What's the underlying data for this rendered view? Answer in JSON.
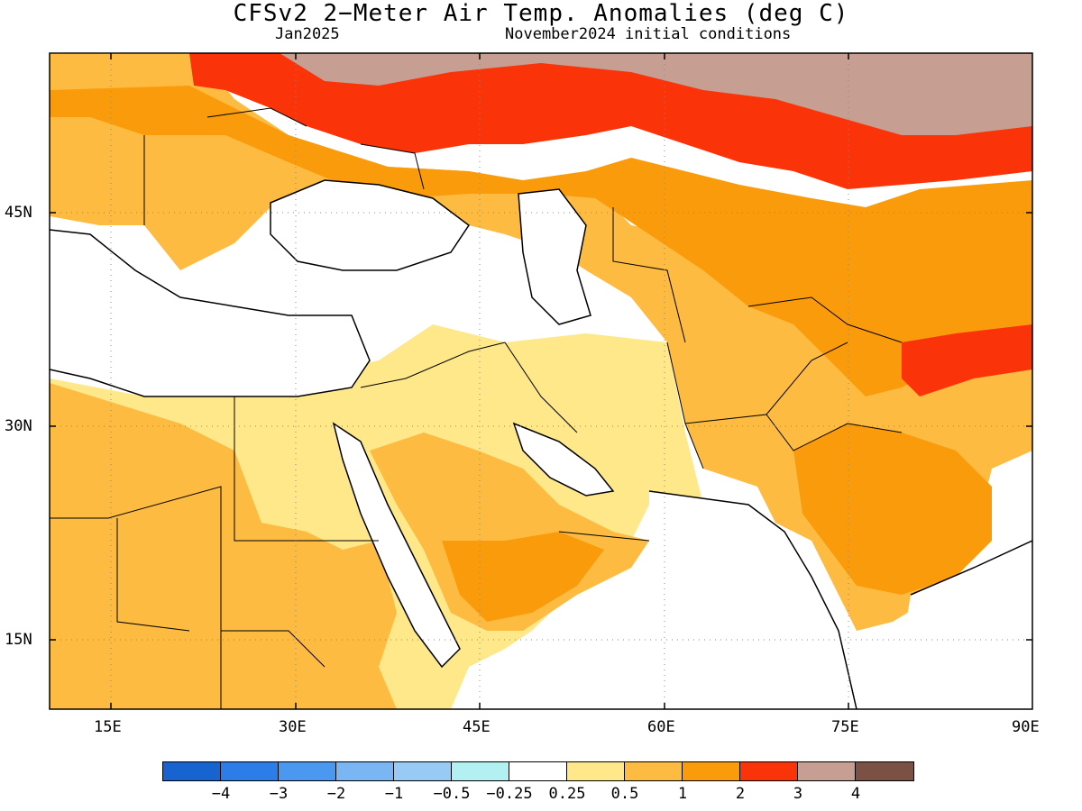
{
  "map": {
    "title": "CFSv2 2−Meter Air Temp. Anomalies (deg C)",
    "valid_month": "Jan2025",
    "initial_conditions": "November2024 initial conditions",
    "lat_labels": [
      "45N",
      "30N",
      "15N"
    ],
    "lon_labels": [
      "15E",
      "30E",
      "45E",
      "60E",
      "75E",
      "90E"
    ],
    "region": "Middle East / South-West Asia",
    "extent": {
      "lon": [
        10,
        90
      ],
      "lat": [
        10,
        56
      ]
    }
  },
  "legend": {
    "colors": [
      "#1764d1",
      "#2d7de8",
      "#4a98f0",
      "#7ab6f3",
      "#97cbf6",
      "#b3f0f2",
      "#ffffff",
      "#ffe88a",
      "#fdbb41",
      "#fa9b0c",
      "#fa3309",
      "#c69e92",
      "#7a5144"
    ],
    "labels": [
      "−4",
      "−3",
      "−2",
      "−1",
      "−0.5",
      "−0.25",
      "0.25",
      "0.5",
      "1",
      "2",
      "3",
      "4"
    ]
  }
}
